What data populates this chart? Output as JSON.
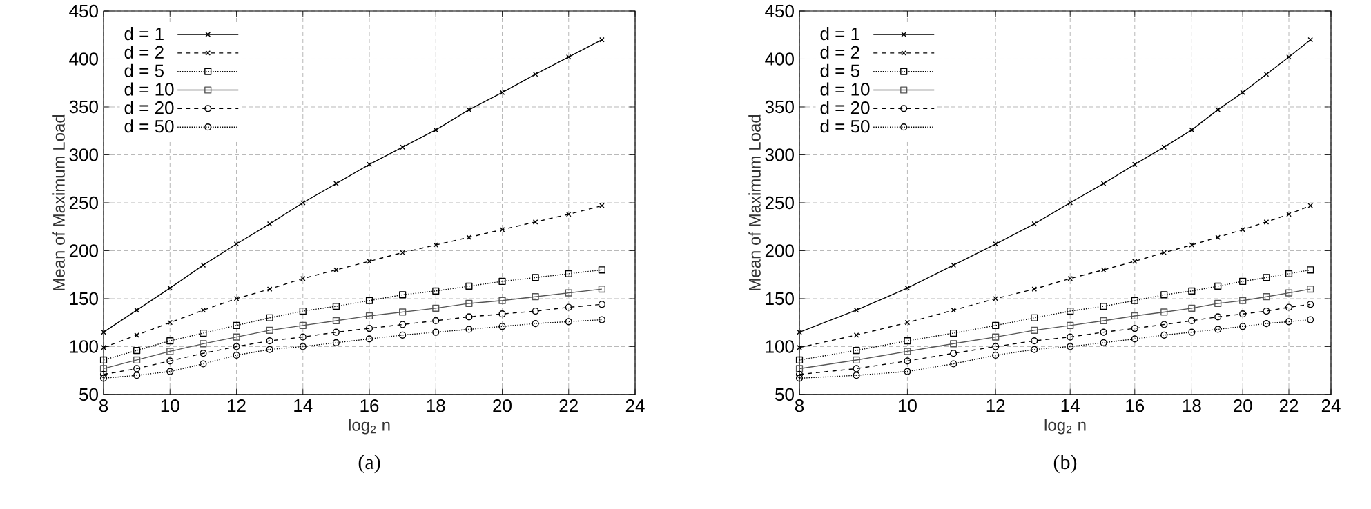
{
  "chart_data": [
    {
      "type": "line",
      "title": "(a)",
      "xlabel": "log$_{2}$ n",
      "ylabel": "Mean of Maximum Load",
      "x": [
        8,
        9,
        10,
        11,
        12,
        13,
        14,
        15,
        16,
        17,
        18,
        19,
        20,
        21,
        22,
        23
      ],
      "series": [
        {
          "name": "d = 1",
          "color": "#000000",
          "marker": "cross",
          "line_style": "solid",
          "values": [
            115,
            138,
            161,
            185,
            207,
            228,
            250,
            270,
            290,
            308,
            326,
            347,
            365,
            384,
            402,
            420
          ]
        },
        {
          "name": "d = 2",
          "color": "#000000",
          "marker": "cross",
          "line_style": "dashed",
          "values": [
            99,
            112,
            125,
            138,
            150,
            160,
            171,
            180,
            189,
            198,
            206,
            214,
            222,
            230,
            238,
            247
          ]
        },
        {
          "name": "d = 5",
          "color": "#000000",
          "marker": "square",
          "line_style": "dotted",
          "values": [
            86,
            96,
            106,
            114,
            122,
            130,
            137,
            142,
            148,
            154,
            158,
            163,
            168,
            172,
            176,
            180
          ]
        },
        {
          "name": "d = 10",
          "color": "#555555",
          "marker": "square",
          "line_style": "solid",
          "values": [
            77,
            86,
            95,
            103,
            110,
            117,
            122,
            127,
            132,
            136,
            140,
            145,
            148,
            152,
            156,
            160
          ]
        },
        {
          "name": "d = 20",
          "color": "#000000",
          "marker": "circle",
          "line_style": "dashed",
          "values": [
            71,
            77,
            85,
            93,
            100,
            106,
            110,
            115,
            119,
            123,
            127,
            131,
            134,
            137,
            141,
            144
          ]
        },
        {
          "name": "d = 50",
          "color": "#000000",
          "marker": "circle",
          "line_style": "dotted",
          "values": [
            67,
            70,
            74,
            82,
            91,
            97,
            100,
            104,
            108,
            112,
            115,
            118,
            121,
            124,
            126,
            128
          ]
        }
      ],
      "xlim": [
        8,
        24
      ],
      "xticks": [
        8,
        10,
        12,
        14,
        16,
        18,
        20,
        22,
        24
      ],
      "ylim": [
        50,
        450
      ],
      "yticks": [
        50,
        100,
        150,
        200,
        250,
        300,
        350,
        400,
        450
      ],
      "grid": true,
      "legend": "top left"
    },
    {
      "type": "line",
      "title": "(b)",
      "xlabel": "log$_{2}$ n",
      "ylabel": "Mean of Maximum Load",
      "x": [
        8,
        9,
        10,
        11,
        12,
        13,
        14,
        15,
        16,
        17,
        18,
        19,
        20,
        21,
        22,
        23
      ],
      "series": [
        {
          "name": "d = 1",
          "color": "#000000",
          "marker": "cross",
          "line_style": "solid",
          "values": [
            115,
            138,
            161,
            185,
            207,
            228,
            250,
            270,
            290,
            308,
            326,
            347,
            365,
            384,
            402,
            420
          ]
        },
        {
          "name": "d = 2",
          "color": "#000000",
          "marker": "cross",
          "line_style": "dashed",
          "values": [
            99,
            112,
            125,
            138,
            150,
            160,
            171,
            180,
            189,
            198,
            206,
            214,
            222,
            230,
            238,
            247
          ]
        },
        {
          "name": "d = 5",
          "color": "#000000",
          "marker": "square",
          "line_style": "dotted",
          "values": [
            86,
            96,
            106,
            114,
            122,
            130,
            137,
            142,
            148,
            154,
            158,
            163,
            168,
            172,
            176,
            180
          ]
        },
        {
          "name": "d = 10",
          "color": "#555555",
          "marker": "square",
          "line_style": "solid",
          "values": [
            77,
            86,
            95,
            103,
            110,
            117,
            122,
            127,
            132,
            136,
            140,
            145,
            148,
            152,
            156,
            160
          ]
        },
        {
          "name": "d = 20",
          "color": "#000000",
          "marker": "circle",
          "line_style": "dashed",
          "values": [
            71,
            77,
            85,
            93,
            100,
            106,
            110,
            115,
            119,
            123,
            127,
            131,
            134,
            137,
            141,
            144
          ]
        },
        {
          "name": "d = 50",
          "color": "#000000",
          "marker": "circle",
          "line_style": "dotted",
          "values": [
            67,
            70,
            74,
            82,
            91,
            97,
            100,
            104,
            108,
            112,
            115,
            118,
            121,
            124,
            126,
            128
          ]
        }
      ],
      "xlim": [
        8,
        24
      ],
      "xticks": [
        8,
        10,
        12,
        14,
        16,
        18,
        20,
        22,
        24
      ],
      "ylim": [
        50,
        450
      ],
      "yticks": [
        50,
        100,
        150,
        200,
        250,
        300,
        350,
        400,
        450
      ],
      "log": "x",
      "grid": true,
      "legend": "top left"
    }
  ]
}
